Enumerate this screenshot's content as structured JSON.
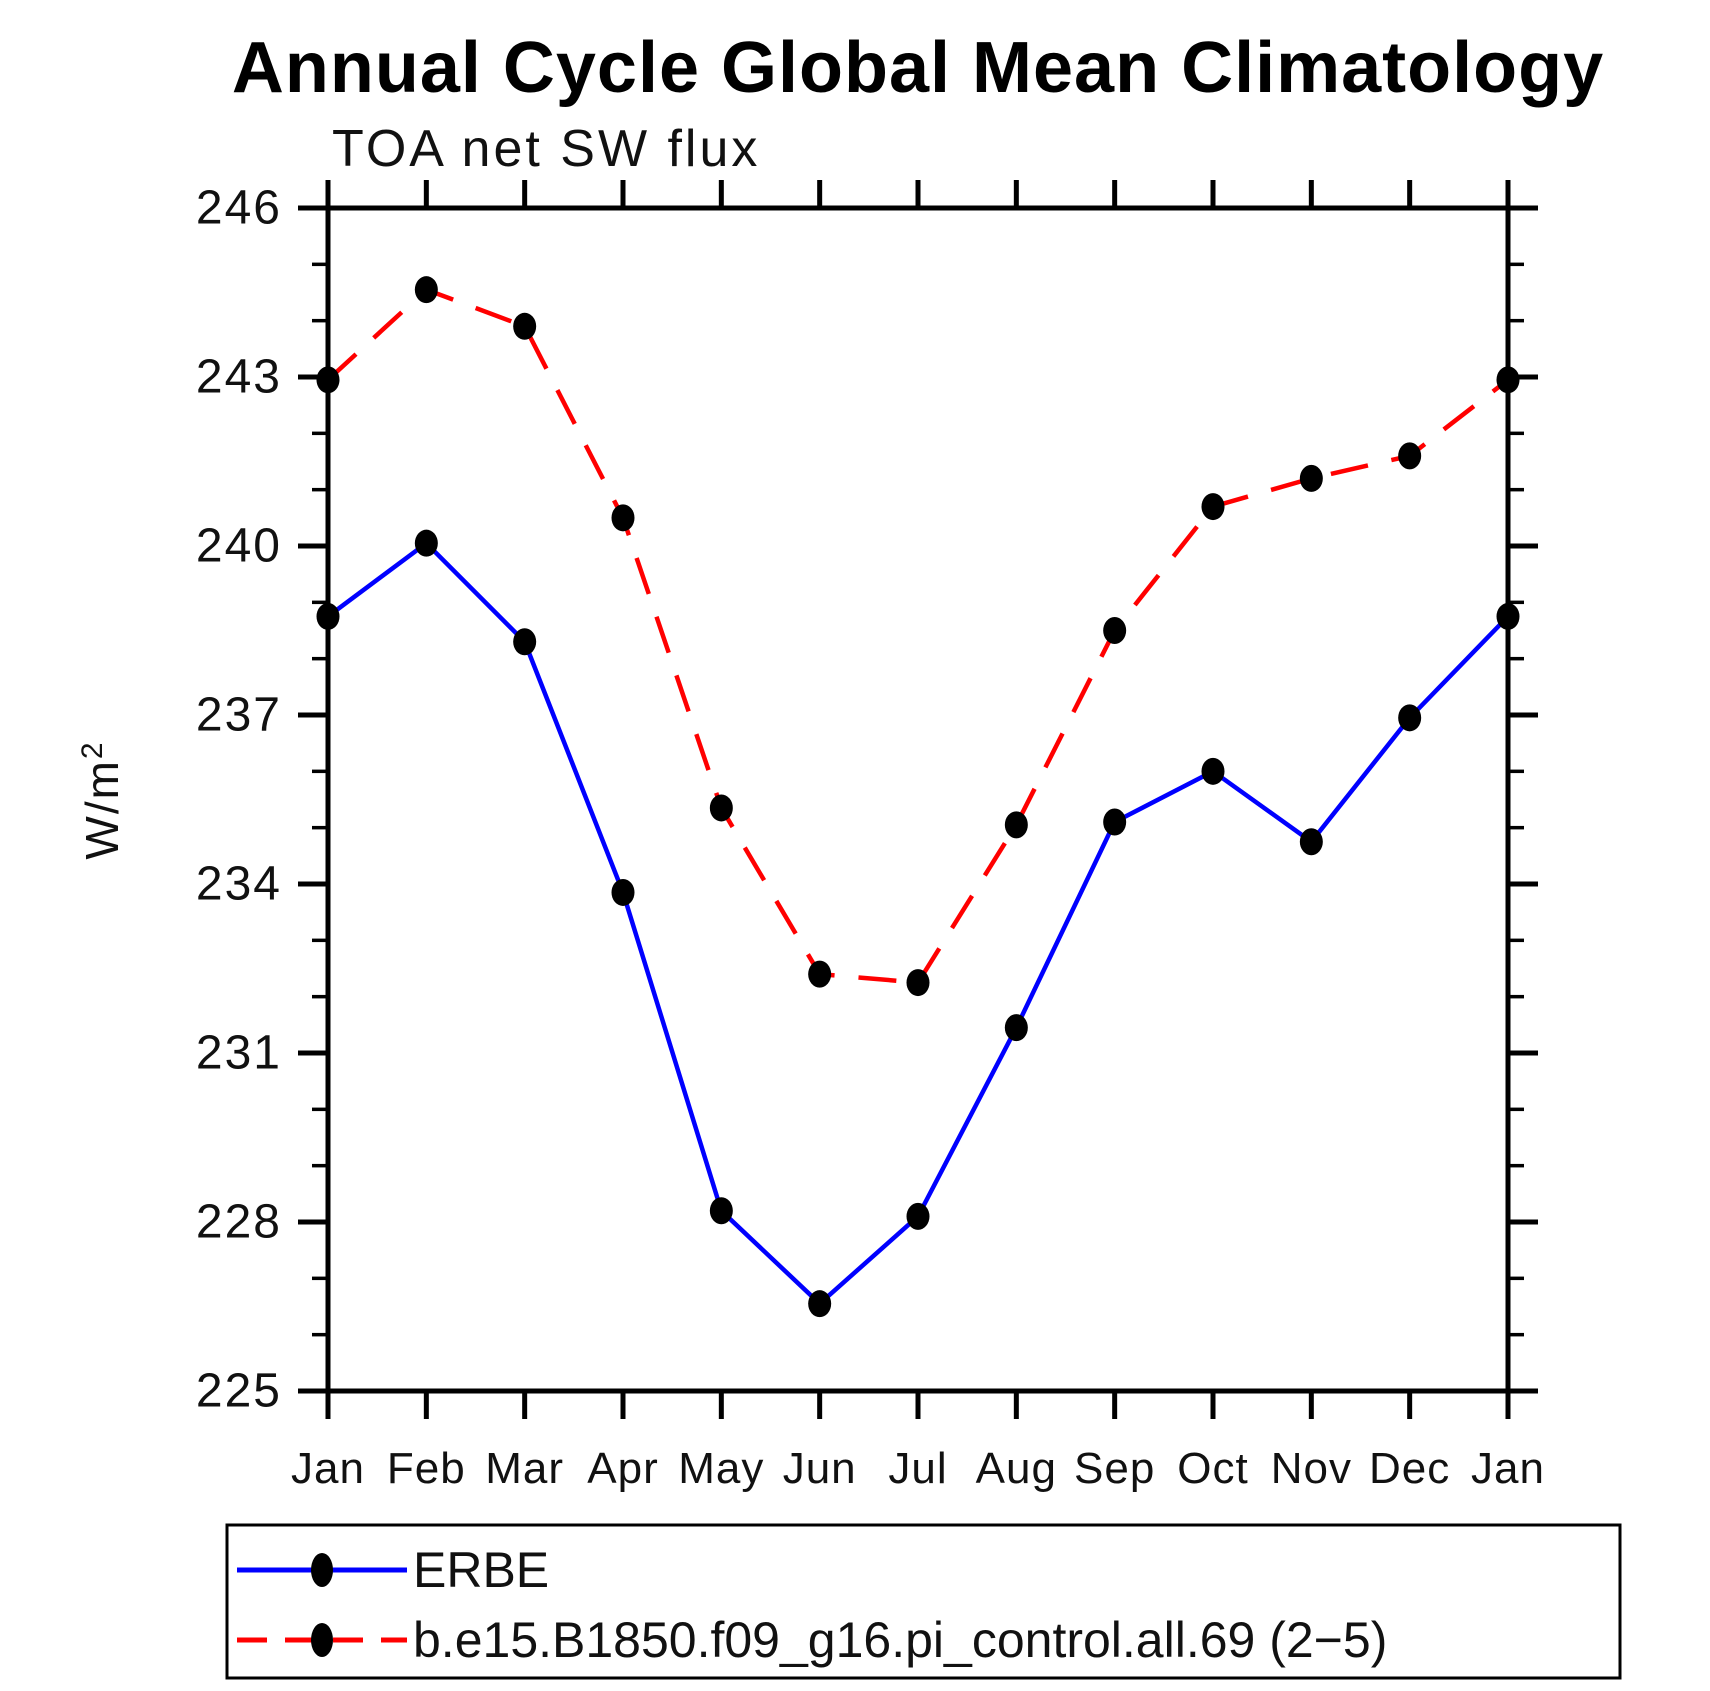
{
  "title": "Annual Cycle Global Mean Climatology",
  "subtitle": "TOA net SW flux",
  "y_axis": {
    "unit_base": "W/m",
    "unit_sup": "2",
    "tick_labels": [
      "246",
      "243",
      "240",
      "237",
      "234",
      "231",
      "228",
      "225"
    ]
  },
  "chart_data": {
    "type": "line",
    "x": [
      "Jan",
      "Feb",
      "Mar",
      "Apr",
      "May",
      "Jun",
      "Jul",
      "Aug",
      "Sep",
      "Oct",
      "Nov",
      "Dec",
      "Jan"
    ],
    "series": [
      {
        "name": "ERBE",
        "color": "#0000ff",
        "line_style": "solid",
        "marker": "filled-circle",
        "marker_color": "#000000",
        "values": [
          238.75,
          240.05,
          238.3,
          233.85,
          228.2,
          226.55,
          228.1,
          231.45,
          235.1,
          236.0,
          234.75,
          236.95,
          238.75
        ]
      },
      {
        "name": "b.e15.B1850.f09_g16.pi_control.all.69 (2−5)",
        "color": "#ff0000",
        "line_style": "dashed",
        "marker": "filled-circle",
        "marker_color": "#000000",
        "values": [
          242.95,
          244.55,
          243.9,
          240.5,
          235.35,
          232.4,
          232.25,
          235.05,
          238.5,
          240.7,
          241.2,
          241.6,
          242.95
        ]
      }
    ],
    "ylim": [
      225,
      246
    ],
    "ytick_major_step": 3,
    "ytick_minor_step": 1,
    "grid": false,
    "legend_position": "bottom-left"
  }
}
